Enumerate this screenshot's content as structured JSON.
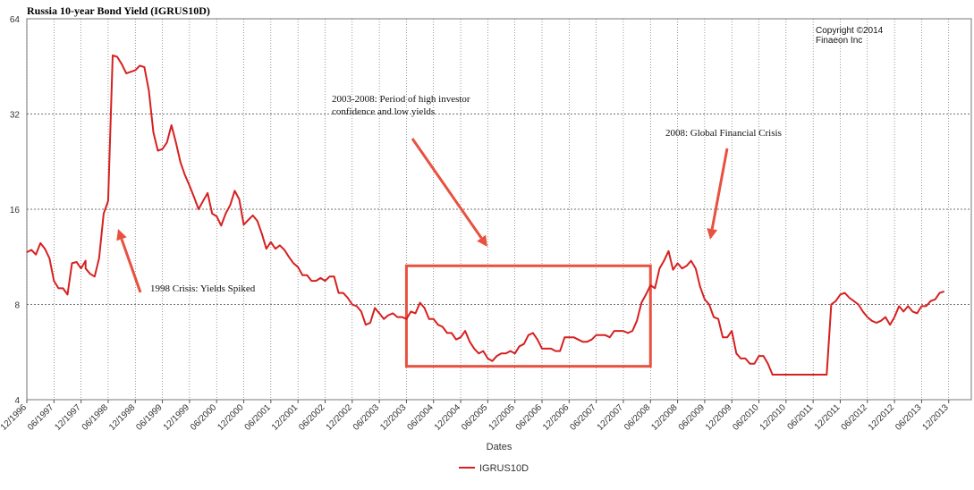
{
  "chart_data": {
    "type": "line",
    "title": "Russia 10-year Bond Yield (IGRUS10D)",
    "xlabel": "Dates",
    "ylabel": "",
    "y_scale": "log2",
    "ylim": [
      4,
      64
    ],
    "y_ticks": [
      4,
      8,
      16,
      32,
      64
    ],
    "x_range": [
      "1996-12",
      "2014-05"
    ],
    "x_ticks": [
      "12/1996",
      "06/1997",
      "12/1997",
      "06/1998",
      "12/1998",
      "06/1999",
      "12/1999",
      "06/2000",
      "12/2000",
      "06/2001",
      "12/2001",
      "06/2002",
      "12/2002",
      "06/2003",
      "12/2003",
      "06/2004",
      "12/2004",
      "06/2005",
      "12/2005",
      "06/2006",
      "12/2006",
      "06/2007",
      "12/2007",
      "06/2008",
      "12/2008",
      "06/2009",
      "12/2009",
      "06/2010",
      "12/2010",
      "06/2011",
      "12/2011",
      "06/2012",
      "12/2012",
      "06/2013",
      "12/2013"
    ],
    "grid": true,
    "legend_position": "bottom",
    "copyright": [
      "Copyright ©2014",
      "Finaeon Inc"
    ],
    "series": [
      {
        "name": "IGRUS10D",
        "color": "#d62020",
        "points": [
          [
            "1996-12",
            11.7
          ],
          [
            "1997-01",
            11.9
          ],
          [
            "1997-02",
            11.5
          ],
          [
            "1997-03",
            12.5
          ],
          [
            "1997-04",
            12.0
          ],
          [
            "1997-05",
            11.2
          ],
          [
            "1997-06",
            9.5
          ],
          [
            "1997-07",
            9.0
          ],
          [
            "1997-08",
            9.0
          ],
          [
            "1997-09",
            8.6
          ],
          [
            "1997-10",
            10.8
          ],
          [
            "1997-11",
            10.9
          ],
          [
            "1997-12",
            10.4
          ],
          [
            "1997-13",
            11.0
          ],
          [
            "1998-01",
            10.4
          ],
          [
            "1998-02",
            10.0
          ],
          [
            "1998-03",
            9.8
          ],
          [
            "1998-04",
            11.2
          ],
          [
            "1998-05",
            15.5
          ],
          [
            "1998-06",
            17.0
          ],
          [
            "1998-07",
            49.0
          ],
          [
            "1998-08",
            48.5
          ],
          [
            "1998-09",
            46.0
          ],
          [
            "1998-10",
            43.0
          ],
          [
            "1998-11",
            43.5
          ],
          [
            "1998-12",
            44.0
          ],
          [
            "1999-01",
            45.5
          ],
          [
            "1999-02",
            45.0
          ],
          [
            "1999-03",
            38.0
          ],
          [
            "1999-04",
            28.0
          ],
          [
            "1999-05",
            24.5
          ],
          [
            "1999-06",
            24.8
          ],
          [
            "1999-07",
            26.0
          ],
          [
            "1999-08",
            29.5
          ],
          [
            "1999-09",
            26.0
          ],
          [
            "1999-10",
            22.5
          ],
          [
            "1999-11",
            20.5
          ],
          [
            "1999-12",
            19.0
          ],
          [
            "2000-01",
            17.5
          ],
          [
            "2000-02",
            16.0
          ],
          [
            "2000-03",
            17.0
          ],
          [
            "2000-04",
            18.0
          ],
          [
            "2000-05",
            15.5
          ],
          [
            "2000-06",
            15.2
          ],
          [
            "2000-07",
            14.2
          ],
          [
            "2000-08",
            15.5
          ],
          [
            "2000-09",
            16.5
          ],
          [
            "2000-10",
            18.3
          ],
          [
            "2000-11",
            17.2
          ],
          [
            "2000-12",
            14.3
          ],
          [
            "2001-01",
            14.8
          ],
          [
            "2001-02",
            15.3
          ],
          [
            "2001-03",
            14.7
          ],
          [
            "2001-04",
            13.4
          ],
          [
            "2001-05",
            12.0
          ],
          [
            "2001-06",
            12.6
          ],
          [
            "2001-07",
            12.0
          ],
          [
            "2001-08",
            12.3
          ],
          [
            "2001-09",
            11.9
          ],
          [
            "2001-10",
            11.3
          ],
          [
            "2001-11",
            10.8
          ],
          [
            "2001-12",
            10.5
          ],
          [
            "2002-01",
            9.9
          ],
          [
            "2002-02",
            9.9
          ],
          [
            "2002-03",
            9.5
          ],
          [
            "2002-04",
            9.5
          ],
          [
            "2002-05",
            9.7
          ],
          [
            "2002-06",
            9.5
          ],
          [
            "2002-07",
            9.8
          ],
          [
            "2002-08",
            9.8
          ],
          [
            "2002-09",
            8.7
          ],
          [
            "2002-10",
            8.7
          ],
          [
            "2002-11",
            8.4
          ],
          [
            "2002-12",
            8.0
          ],
          [
            "2003-01",
            7.9
          ],
          [
            "2003-02",
            7.6
          ],
          [
            "2003-03",
            6.9
          ],
          [
            "2003-04",
            7.0
          ],
          [
            "2003-05",
            7.8
          ],
          [
            "2003-06",
            7.5
          ],
          [
            "2003-07",
            7.2
          ],
          [
            "2003-08",
            7.4
          ],
          [
            "2003-09",
            7.5
          ],
          [
            "2003-10",
            7.3
          ],
          [
            "2003-11",
            7.3
          ],
          [
            "2003-12",
            7.2
          ],
          [
            "2004-01",
            7.6
          ],
          [
            "2004-02",
            7.5
          ],
          [
            "2004-03",
            8.1
          ],
          [
            "2004-04",
            7.8
          ],
          [
            "2004-05",
            7.2
          ],
          [
            "2004-06",
            7.2
          ],
          [
            "2004-07",
            6.9
          ],
          [
            "2004-08",
            6.8
          ],
          [
            "2004-09",
            6.5
          ],
          [
            "2004-10",
            6.5
          ],
          [
            "2004-11",
            6.2
          ],
          [
            "2004-12",
            6.3
          ],
          [
            "2005-01",
            6.6
          ],
          [
            "2005-02",
            6.1
          ],
          [
            "2005-03",
            5.8
          ],
          [
            "2005-04",
            5.6
          ],
          [
            "2005-05",
            5.7
          ],
          [
            "2005-06",
            5.4
          ],
          [
            "2005-07",
            5.3
          ],
          [
            "2005-08",
            5.5
          ],
          [
            "2005-09",
            5.6
          ],
          [
            "2005-10",
            5.6
          ],
          [
            "2005-11",
            5.7
          ],
          [
            "2005-12",
            5.6
          ],
          [
            "2006-01",
            5.9
          ],
          [
            "2006-02",
            6.0
          ],
          [
            "2006-03",
            6.4
          ],
          [
            "2006-04",
            6.5
          ],
          [
            "2006-05",
            6.2
          ],
          [
            "2006-06",
            5.8
          ],
          [
            "2006-07",
            5.8
          ],
          [
            "2006-08",
            5.8
          ],
          [
            "2006-09",
            5.7
          ],
          [
            "2006-10",
            5.7
          ],
          [
            "2006-11",
            6.3
          ],
          [
            "2006-12",
            6.3
          ],
          [
            "2007-01",
            6.3
          ],
          [
            "2007-02",
            6.2
          ],
          [
            "2007-03",
            6.1
          ],
          [
            "2007-04",
            6.1
          ],
          [
            "2007-05",
            6.2
          ],
          [
            "2007-06",
            6.4
          ],
          [
            "2007-07",
            6.4
          ],
          [
            "2007-08",
            6.4
          ],
          [
            "2007-09",
            6.3
          ],
          [
            "2007-10",
            6.6
          ],
          [
            "2007-11",
            6.6
          ],
          [
            "2007-12",
            6.6
          ],
          [
            "2008-01",
            6.5
          ],
          [
            "2008-02",
            6.6
          ],
          [
            "2008-03",
            7.1
          ],
          [
            "2008-04",
            8.1
          ],
          [
            "2008-05",
            8.6
          ],
          [
            "2008-06",
            9.2
          ],
          [
            "2008-07",
            9.0
          ],
          [
            "2008-08",
            10.4
          ],
          [
            "2008-09",
            11.0
          ],
          [
            "2008-10",
            11.8
          ],
          [
            "2008-11",
            10.3
          ],
          [
            "2008-12",
            10.8
          ],
          [
            "2009-01",
            10.4
          ],
          [
            "2009-02",
            10.6
          ],
          [
            "2009-03",
            11.0
          ],
          [
            "2009-04",
            10.4
          ],
          [
            "2009-05",
            9.1
          ],
          [
            "2009-06",
            8.3
          ],
          [
            "2009-07",
            8.0
          ],
          [
            "2009-08",
            7.3
          ],
          [
            "2009-09",
            7.2
          ],
          [
            "2009-10",
            6.3
          ],
          [
            "2009-11",
            6.3
          ],
          [
            "2009-12",
            6.6
          ],
          [
            "2010-01",
            5.6
          ],
          [
            "2010-02",
            5.4
          ],
          [
            "2010-03",
            5.4
          ],
          [
            "2010-04",
            5.2
          ],
          [
            "2010-05",
            5.2
          ],
          [
            "2010-06",
            5.5
          ],
          [
            "2010-07",
            5.5
          ],
          [
            "2010-08",
            5.2
          ],
          [
            "2010-09",
            4.8
          ],
          [
            "2010-10",
            4.8
          ],
          [
            "2010-11",
            4.8
          ],
          [
            "2010-12",
            4.8
          ],
          [
            "2011-01",
            4.8
          ],
          [
            "2011-02",
            4.8
          ],
          [
            "2011-03",
            4.8
          ],
          [
            "2011-04",
            4.8
          ],
          [
            "2011-05",
            4.8
          ],
          [
            "2011-06",
            4.8
          ],
          [
            "2011-07",
            4.8
          ],
          [
            "2011-08",
            4.8
          ],
          [
            "2011-09",
            4.8
          ],
          [
            "2011-10",
            8.0
          ],
          [
            "2011-11",
            8.2
          ],
          [
            "2011-12",
            8.6
          ],
          [
            "2012-01",
            8.7
          ],
          [
            "2012-02",
            8.4
          ],
          [
            "2012-03",
            8.2
          ],
          [
            "2012-04",
            8.0
          ],
          [
            "2012-05",
            7.6
          ],
          [
            "2012-06",
            7.3
          ],
          [
            "2012-07",
            7.1
          ],
          [
            "2012-08",
            7.0
          ],
          [
            "2012-09",
            7.1
          ],
          [
            "2012-10",
            7.3
          ],
          [
            "2012-11",
            6.9
          ],
          [
            "2012-12",
            7.3
          ],
          [
            "2013-01",
            7.9
          ],
          [
            "2013-02",
            7.6
          ],
          [
            "2013-03",
            7.9
          ],
          [
            "2013-04",
            7.6
          ],
          [
            "2013-05",
            7.5
          ],
          [
            "2013-06",
            7.9
          ],
          [
            "2013-07",
            7.9
          ],
          [
            "2013-08",
            8.2
          ],
          [
            "2013-09",
            8.3
          ],
          [
            "2013-10",
            8.7
          ],
          [
            "2013-11",
            8.8
          ]
        ]
      }
    ],
    "annotations": [
      {
        "id": "crisis-1998",
        "lines": [
          "1998 Crisis: Yields Spiked"
        ]
      },
      {
        "id": "high-confidence",
        "lines": [
          "2003-2008: Period of high investor",
          "confidence and low yields"
        ]
      },
      {
        "id": "gfc-2008",
        "lines": [
          "2008: Global Financial Crisis"
        ]
      }
    ],
    "highlight_box": {
      "from": "2003-12",
      "to": "2008-06",
      "ylim": [
        5.1,
        10.6
      ],
      "color": "#e8513f"
    },
    "arrow_color": "#e8513f"
  }
}
